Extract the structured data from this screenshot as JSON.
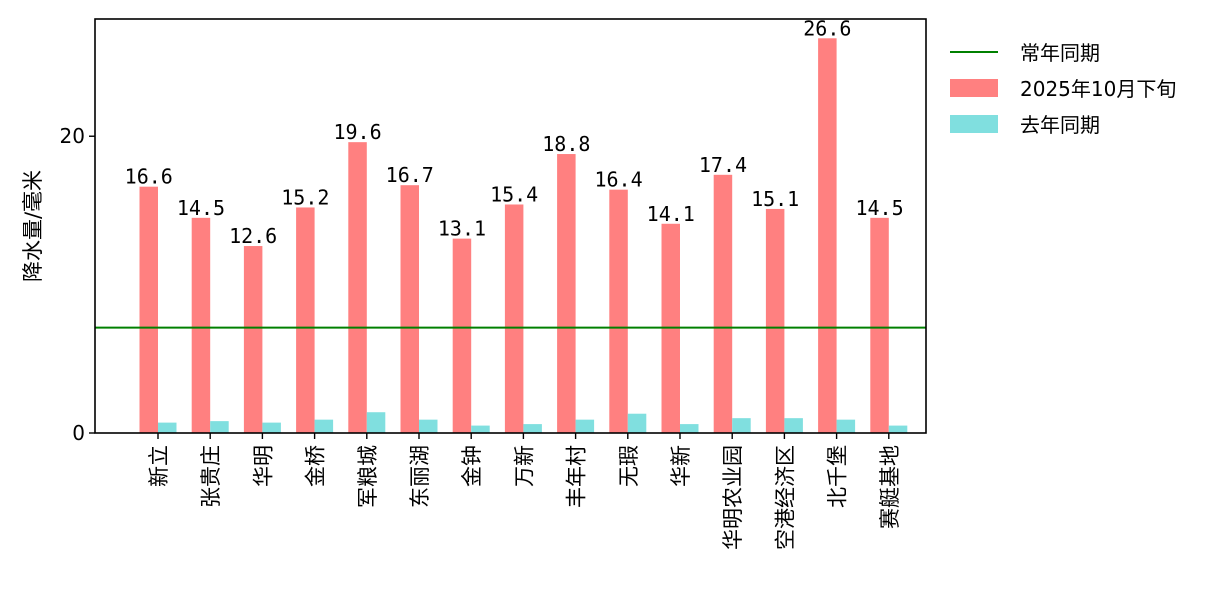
{
  "chart_data": {
    "type": "bar",
    "ylabel": "降水量/毫米",
    "ylim": [
      0,
      27.9
    ],
    "yticks": [
      0,
      20
    ],
    "grid": false,
    "legend_position": "outside-top-right",
    "categories": [
      "新立",
      "张贵庄",
      "华明",
      "金桥",
      "军粮城",
      "东丽湖",
      "金钟",
      "万新",
      "丰年村",
      "无瑕",
      "华新",
      "华明农业园",
      "空港经济区",
      "北千堡",
      "赛艇基地"
    ],
    "series": [
      {
        "name": "2025年10月下旬",
        "color": "#ff8080",
        "values": [
          16.6,
          14.5,
          12.6,
          15.2,
          19.6,
          16.7,
          13.1,
          15.4,
          18.8,
          16.4,
          14.1,
          17.4,
          15.1,
          26.6,
          14.5
        ],
        "value_labels": [
          "16.6",
          "14.5",
          "12.6",
          "15.2",
          "19.6",
          "16.7",
          "13.1",
          "15.4",
          "18.8",
          "16.4",
          "14.1",
          "17.4",
          "15.1",
          "26.6",
          "14.5"
        ]
      },
      {
        "name": "去年同期",
        "color": "#80dfdf",
        "values": [
          0.7,
          0.8,
          0.7,
          0.9,
          1.4,
          0.9,
          0.5,
          0.6,
          0.9,
          1.3,
          0.6,
          1.0,
          1.0,
          0.9,
          0.5
        ]
      }
    ],
    "reference_line": {
      "name": "常年同期",
      "value": 7.1,
      "color": "#008000"
    },
    "legend": [
      "常年同期",
      "2025年10月下旬",
      "去年同期"
    ]
  }
}
